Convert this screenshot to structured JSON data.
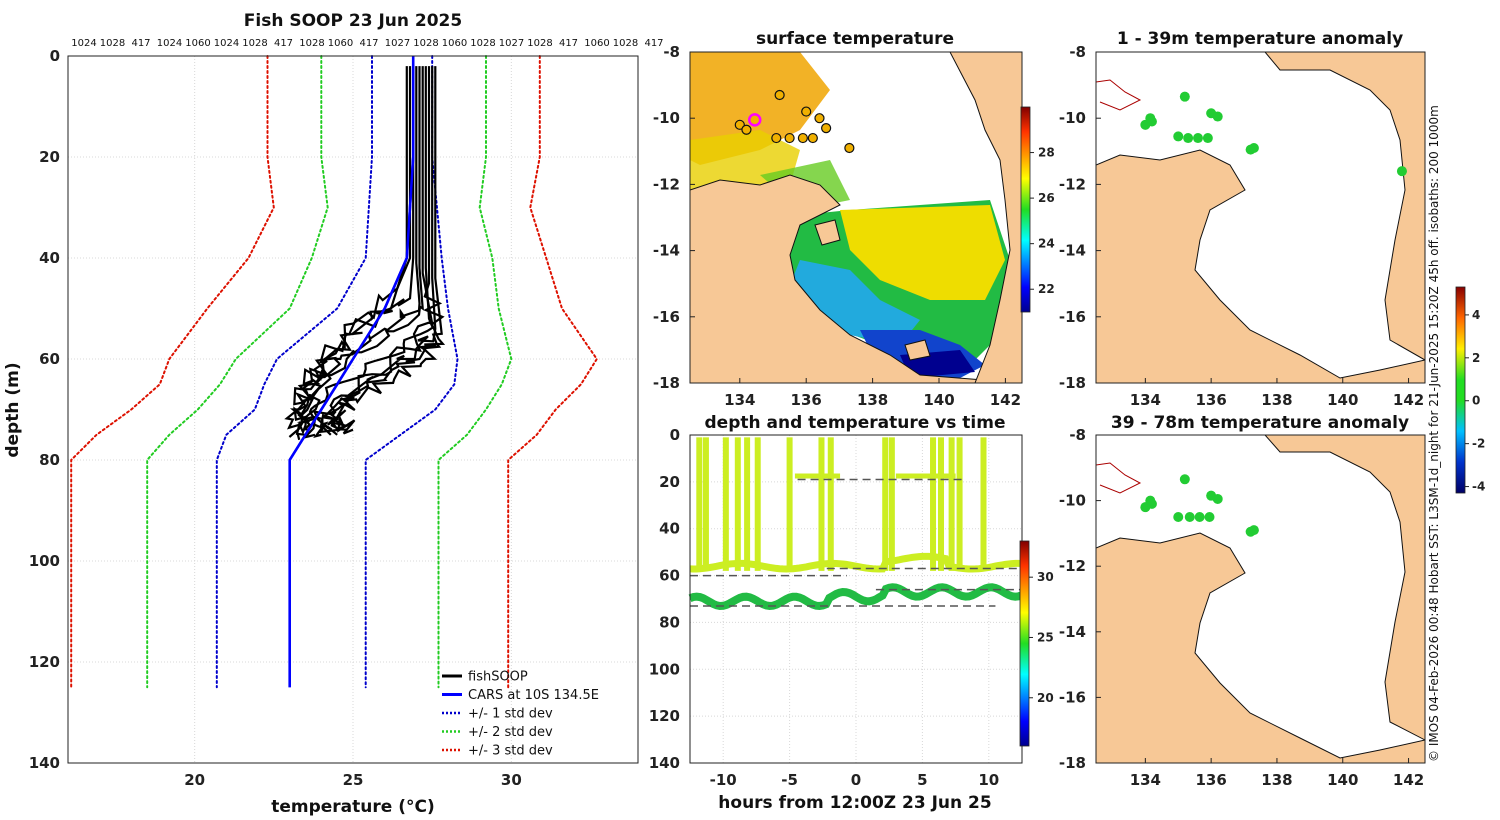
{
  "chart_data": [
    {
      "type": "line",
      "name": "depth profile",
      "title": "Fish SOOP 23 Jun 2025",
      "xlabel": "temperature (°C)",
      "ylabel": "depth (m)",
      "xlim": [
        16,
        34
      ],
      "ylim": [
        140,
        0
      ],
      "xticks": [
        20,
        25,
        30
      ],
      "yticks": [
        0,
        20,
        40,
        60,
        80,
        100,
        120,
        140
      ],
      "top_labels": [
        "1024",
        "1028",
        "417",
        "1024",
        "1060",
        "1024",
        "1028",
        "417",
        "1028",
        "1060",
        "417",
        "1027",
        "1028",
        "1060",
        "1028",
        "1027",
        "1028",
        "417",
        "1060",
        "1028",
        "417"
      ],
      "legend": [
        {
          "label": "fishSOOP",
          "color": "#000000",
          "style": "solid"
        },
        {
          "label": "CARS at 10S 134.5E",
          "color": "#0000ff",
          "style": "solid"
        },
        {
          "label": "+/- 1 std dev",
          "color": "#0000cc",
          "style": "dotted"
        },
        {
          "label": "+/- 2 std dev",
          "color": "#22cc22",
          "style": "dotted"
        },
        {
          "label": "+/- 3 std dev",
          "color": "#dd1100",
          "style": "dotted"
        }
      ],
      "legend_location": "bottom-right",
      "series": [
        {
          "name": "CARS at 10S 134.5E",
          "points": [
            [
              26.9,
              0
            ],
            [
              26.9,
              20
            ],
            [
              26.7,
              40
            ],
            [
              26.0,
              50
            ],
            [
              25.0,
              60
            ],
            [
              24.5,
              65
            ],
            [
              23.8,
              72
            ],
            [
              23.0,
              80
            ],
            [
              23.0,
              125
            ]
          ]
        },
        {
          "name": "+1 std dev",
          "points": [
            [
              27.5,
              0
            ],
            [
              27.5,
              20
            ],
            [
              27.8,
              40
            ],
            [
              28.0,
              50
            ],
            [
              28.3,
              60
            ],
            [
              28.2,
              65
            ],
            [
              27.6,
              70
            ],
            [
              25.4,
              80
            ],
            [
              25.4,
              125
            ]
          ]
        },
        {
          "name": "-1 std dev",
          "points": [
            [
              25.6,
              0
            ],
            [
              25.6,
              20
            ],
            [
              25.4,
              40
            ],
            [
              24.5,
              50
            ],
            [
              22.6,
              60
            ],
            [
              22.2,
              65
            ],
            [
              21.9,
              70
            ],
            [
              21.0,
              75
            ],
            [
              20.7,
              80
            ],
            [
              20.7,
              125
            ]
          ]
        },
        {
          "name": "+2 std dev",
          "points": [
            [
              29.2,
              0
            ],
            [
              29.2,
              20
            ],
            [
              29.0,
              30
            ],
            [
              29.4,
              40
            ],
            [
              29.6,
              50
            ],
            [
              30.0,
              60
            ],
            [
              29.7,
              65
            ],
            [
              29.2,
              70
            ],
            [
              28.6,
              75
            ],
            [
              27.7,
              80
            ],
            [
              27.7,
              125
            ]
          ]
        },
        {
          "name": "-2 std dev",
          "points": [
            [
              24.0,
              0
            ],
            [
              24.0,
              20
            ],
            [
              24.2,
              30
            ],
            [
              23.7,
              40
            ],
            [
              23.0,
              50
            ],
            [
              21.3,
              60
            ],
            [
              20.8,
              65
            ],
            [
              20.1,
              70
            ],
            [
              19.2,
              75
            ],
            [
              18.5,
              80
            ],
            [
              18.5,
              125
            ]
          ]
        },
        {
          "name": "+3 std dev",
          "points": [
            [
              30.9,
              0
            ],
            [
              30.9,
              20
            ],
            [
              30.6,
              30
            ],
            [
              31.1,
              40
            ],
            [
              31.6,
              50
            ],
            [
              32.7,
              60
            ],
            [
              32.2,
              65
            ],
            [
              31.4,
              70
            ],
            [
              30.8,
              75
            ],
            [
              29.9,
              80
            ],
            [
              29.9,
              125
            ]
          ]
        },
        {
          "name": "-3 std dev",
          "points": [
            [
              22.3,
              0
            ],
            [
              22.3,
              20
            ],
            [
              22.5,
              30
            ],
            [
              21.7,
              40
            ],
            [
              20.4,
              50
            ],
            [
              19.2,
              60
            ],
            [
              18.9,
              65
            ],
            [
              18.0,
              70
            ],
            [
              16.9,
              75
            ],
            [
              16.1,
              80
            ],
            [
              16.1,
              125
            ]
          ]
        }
      ],
      "fish_profiles": [
        [
          [
            26.7,
            2
          ],
          [
            26.7,
            40
          ],
          [
            26.2,
            50
          ],
          [
            24.8,
            55
          ],
          [
            23.8,
            62
          ],
          [
            23.4,
            66
          ],
          [
            23.1,
            72
          ],
          [
            23.3,
            76
          ]
        ],
        [
          [
            26.9,
            2
          ],
          [
            26.9,
            40
          ],
          [
            26.8,
            48
          ],
          [
            25.6,
            52
          ],
          [
            24.5,
            58
          ],
          [
            23.7,
            64
          ],
          [
            23.3,
            70
          ],
          [
            23.6,
            74
          ]
        ],
        [
          [
            27.1,
            2
          ],
          [
            27.1,
            42
          ],
          [
            27.2,
            50
          ],
          [
            26.1,
            55
          ],
          [
            24.8,
            60
          ],
          [
            23.9,
            66
          ],
          [
            23.6,
            71
          ],
          [
            24.0,
            75
          ]
        ],
        [
          [
            27.3,
            2
          ],
          [
            27.3,
            42
          ],
          [
            27.4,
            52
          ],
          [
            26.6,
            57
          ],
          [
            25.4,
            62
          ],
          [
            24.2,
            67
          ],
          [
            23.8,
            72
          ],
          [
            24.3,
            75
          ]
        ],
        [
          [
            27.5,
            2
          ],
          [
            27.5,
            44
          ],
          [
            27.6,
            54
          ],
          [
            27.0,
            58
          ],
          [
            25.9,
            63
          ],
          [
            24.6,
            68
          ],
          [
            24.0,
            73
          ],
          [
            24.6,
            74
          ]
        ],
        [
          [
            27.6,
            2
          ],
          [
            27.6,
            44
          ],
          [
            27.8,
            55
          ],
          [
            27.3,
            60
          ],
          [
            26.3,
            64
          ],
          [
            25.1,
            68
          ],
          [
            24.4,
            72
          ],
          [
            25.0,
            74
          ]
        ],
        [
          [
            26.8,
            2
          ],
          [
            26.8,
            40
          ],
          [
            26.4,
            46
          ],
          [
            25.0,
            53
          ],
          [
            24.1,
            60
          ],
          [
            23.5,
            66
          ],
          [
            23.2,
            72
          ],
          [
            23.5,
            75
          ]
        ],
        [
          [
            27.2,
            2
          ],
          [
            27.2,
            43
          ],
          [
            27.5,
            53
          ],
          [
            26.8,
            58
          ],
          [
            25.6,
            63
          ],
          [
            24.4,
            68
          ],
          [
            23.9,
            72
          ],
          [
            24.5,
            75
          ]
        ],
        [
          [
            27.4,
            2
          ],
          [
            27.4,
            45
          ],
          [
            27.7,
            56
          ],
          [
            27.1,
            60
          ],
          [
            26.0,
            64
          ],
          [
            24.8,
            69
          ],
          [
            24.2,
            73
          ],
          [
            24.8,
            74
          ]
        ],
        [
          [
            27.0,
            2
          ],
          [
            27.0,
            41
          ],
          [
            27.1,
            49
          ],
          [
            26.0,
            54
          ],
          [
            24.6,
            60
          ],
          [
            23.8,
            65
          ],
          [
            23.4,
            71
          ],
          [
            23.8,
            75
          ]
        ]
      ]
    },
    {
      "type": "heatmap",
      "name": "surface temperature map",
      "title": "surface temperature",
      "xlim": [
        132.5,
        142.5
      ],
      "ylim": [
        -18,
        -8
      ],
      "xticks": [
        134,
        136,
        138,
        140,
        142
      ],
      "yticks": [
        -8,
        -10,
        -12,
        -14,
        -16,
        -18
      ],
      "colorbar": {
        "range": [
          21,
          30
        ],
        "ticks": [
          22,
          24,
          26,
          28
        ]
      },
      "stations": [
        [
          134.0,
          -10.2
        ],
        [
          134.2,
          -10.35
        ],
        [
          135.2,
          -9.3
        ],
        [
          135.1,
          -10.6
        ],
        [
          135.5,
          -10.6
        ],
        [
          135.9,
          -10.6
        ],
        [
          136.2,
          -10.6
        ],
        [
          136.0,
          -9.8
        ],
        [
          136.4,
          -10.0
        ],
        [
          136.6,
          -10.3
        ],
        [
          137.3,
          -10.9
        ]
      ],
      "highlight_station": [
        134.45,
        -10.05
      ]
    },
    {
      "type": "scatter",
      "name": "depth and temperature vs time",
      "title": "depth and temperature vs time",
      "xlabel": "hours from 12:00Z 23 Jun 25",
      "xlim": [
        -12.5,
        12.5
      ],
      "ylim": [
        140,
        0
      ],
      "xticks": [
        -10,
        -5,
        0,
        5,
        10
      ],
      "yticks": [
        0,
        20,
        40,
        60,
        80,
        100,
        120,
        140
      ],
      "colorbar": {
        "range": [
          16,
          33
        ],
        "ticks": [
          20,
          25,
          30
        ]
      },
      "reference_depths": [
        19,
        57,
        60,
        66,
        73
      ]
    },
    {
      "type": "scatter",
      "name": "1 - 39m temperature anomaly",
      "title": "1 - 39m temperature anomaly",
      "xlim": [
        132.5,
        142.5
      ],
      "ylim": [
        -18,
        -8
      ],
      "xticks": [
        134,
        136,
        138,
        140,
        142
      ],
      "yticks": [
        -8,
        -10,
        -12,
        -14,
        -16,
        -18
      ],
      "points": [
        [
          134.0,
          -10.2
        ],
        [
          134.2,
          -10.1
        ],
        [
          134.15,
          -10.0
        ],
        [
          135.2,
          -9.35
        ],
        [
          135.0,
          -10.55
        ],
        [
          135.3,
          -10.6
        ],
        [
          135.6,
          -10.6
        ],
        [
          135.9,
          -10.6
        ],
        [
          136.0,
          -9.85
        ],
        [
          136.2,
          -9.95
        ],
        [
          137.2,
          -10.95
        ],
        [
          137.3,
          -10.9
        ],
        [
          141.8,
          -11.6
        ]
      ],
      "colorbar": {
        "range": [
          -4.3,
          5.3
        ],
        "ticks": [
          -4,
          -2,
          0,
          2,
          4
        ]
      }
    },
    {
      "type": "scatter",
      "name": "39 - 78m temperature anomaly",
      "title": "39 - 78m temperature anomaly",
      "xlim": [
        132.5,
        142.5
      ],
      "ylim": [
        -18,
        -8
      ],
      "xticks": [
        134,
        136,
        138,
        140,
        142
      ],
      "yticks": [
        -8,
        -10,
        -12,
        -14,
        -16,
        -18
      ],
      "points": [
        [
          134.0,
          -10.2
        ],
        [
          134.2,
          -10.1
        ],
        [
          134.15,
          -10.0
        ],
        [
          135.2,
          -9.35
        ],
        [
          135.0,
          -10.5
        ],
        [
          135.35,
          -10.5
        ],
        [
          135.65,
          -10.5
        ],
        [
          135.95,
          -10.5
        ],
        [
          136.0,
          -9.85
        ],
        [
          136.2,
          -9.95
        ],
        [
          137.2,
          -10.95
        ],
        [
          137.3,
          -10.9
        ]
      ]
    }
  ],
  "credit": "© IMOS 04-Feb-2026 00:48 Hobart SST: L3SM-1d_night for 21-Jun-2025 15:20Z 45h off. isobaths: 200  1000m"
}
